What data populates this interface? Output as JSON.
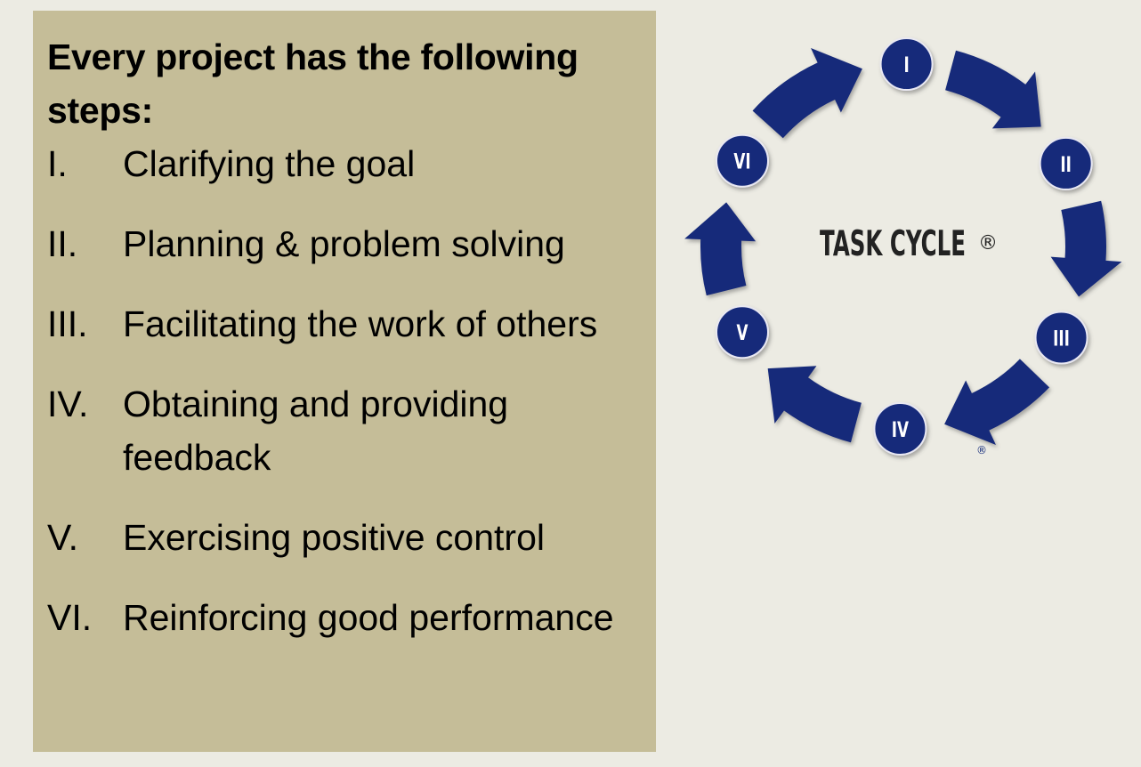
{
  "heading": "Every project has the following steps:",
  "steps": [
    {
      "numeral": "I.",
      "label": "Clarifying the goal"
    },
    {
      "numeral": "II.",
      "label": "Planning & problem solving"
    },
    {
      "numeral": "III.",
      "label": "Facilitating the work of others"
    },
    {
      "numeral": "IV.",
      "label": "Obtaining and providing feedback"
    },
    {
      "numeral": "V.",
      "label": "Exercising positive control"
    },
    {
      "numeral": "VI.",
      "label": "Reinforcing good performance"
    }
  ],
  "cycle": {
    "center_label": "TASK CYCLE",
    "registered_mark": "®",
    "nodes": [
      "I",
      "II",
      "III",
      "IV",
      "V",
      "VI"
    ],
    "color": "#132a7a"
  }
}
